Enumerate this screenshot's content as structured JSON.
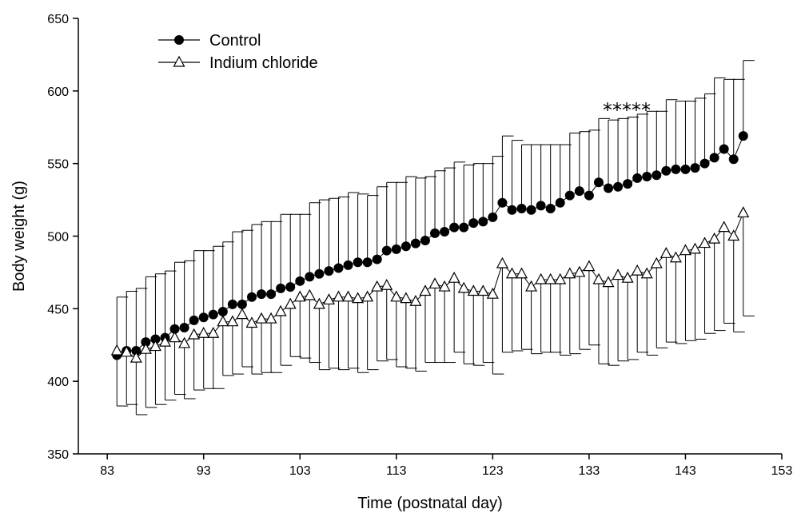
{
  "chart_data": {
    "type": "line",
    "xlabel": "Time (postnatal day)",
    "ylabel": "Body  weight (g)",
    "xlim": [
      80,
      153
    ],
    "ylim": [
      350,
      650
    ],
    "x_ticks": [
      83,
      93,
      103,
      113,
      123,
      133,
      143,
      153
    ],
    "y_ticks": [
      350,
      400,
      450,
      500,
      550,
      600,
      650
    ],
    "grid": false,
    "legend_position": "top-left",
    "significance_marker": "*****",
    "series": [
      {
        "name": "Control",
        "marker": "filled-circle",
        "error_bar_direction": "up",
        "x": [
          84,
          85,
          86,
          87,
          88,
          89,
          90,
          91,
          92,
          93,
          94,
          95,
          96,
          97,
          98,
          99,
          100,
          101,
          102,
          103,
          104,
          105,
          106,
          107,
          108,
          109,
          110,
          111,
          112,
          113,
          114,
          115,
          116,
          117,
          118,
          119,
          120,
          121,
          122,
          123,
          124,
          125,
          126,
          127,
          128,
          129,
          130,
          131,
          132,
          133,
          134,
          135,
          136,
          137,
          138,
          139,
          140,
          141,
          142,
          143,
          144,
          145,
          146,
          147,
          148,
          149
        ],
        "values": [
          418,
          421,
          421,
          427,
          429,
          430,
          436,
          437,
          442,
          444,
          446,
          448,
          453,
          453,
          458,
          460,
          460,
          464,
          465,
          469,
          472,
          474,
          476,
          478,
          480,
          482,
          482,
          484,
          490,
          491,
          493,
          495,
          497,
          502,
          503,
          506,
          506,
          509,
          510,
          513,
          523,
          518,
          519,
          518,
          521,
          519,
          523,
          528,
          531,
          528,
          537,
          533,
          534,
          536,
          540,
          541,
          542,
          545,
          546,
          546,
          547,
          550,
          554,
          560,
          553,
          569
        ],
        "error": [
          40,
          41,
          43,
          45,
          45,
          46,
          46,
          46,
          48,
          46,
          47,
          48,
          50,
          51,
          50,
          50,
          50,
          51,
          50,
          46,
          51,
          51,
          50,
          49,
          50,
          47,
          46,
          50,
          47,
          46,
          48,
          45,
          44,
          43,
          44,
          45,
          43,
          41,
          40,
          42,
          46,
          48,
          44,
          45,
          42,
          44,
          40,
          43,
          41,
          45,
          44,
          47,
          47,
          46,
          44,
          45,
          44,
          49,
          47,
          47,
          48,
          48,
          55,
          48,
          55,
          52
        ]
      },
      {
        "name": "Indium chloride",
        "marker": "open-triangle",
        "error_bar_direction": "down",
        "x": [
          84,
          85,
          86,
          87,
          88,
          89,
          90,
          91,
          92,
          93,
          94,
          95,
          96,
          97,
          98,
          99,
          100,
          101,
          102,
          103,
          104,
          105,
          106,
          107,
          108,
          109,
          110,
          111,
          112,
          113,
          114,
          115,
          116,
          117,
          118,
          119,
          120,
          121,
          122,
          123,
          124,
          125,
          126,
          127,
          128,
          129,
          130,
          131,
          132,
          133,
          134,
          135,
          136,
          137,
          138,
          139,
          140,
          141,
          142,
          143,
          144,
          145,
          146,
          147,
          148,
          149
        ],
        "values": [
          421,
          420,
          416,
          422,
          424,
          427,
          430,
          426,
          432,
          433,
          433,
          441,
          441,
          446,
          440,
          443,
          443,
          448,
          453,
          458,
          459,
          453,
          456,
          458,
          458,
          457,
          458,
          465,
          466,
          458,
          457,
          455,
          462,
          467,
          465,
          471,
          464,
          462,
          462,
          460,
          481,
          474,
          474,
          465,
          470,
          470,
          470,
          474,
          475,
          479,
          470,
          468,
          473,
          471,
          476,
          474,
          481,
          488,
          485,
          490,
          491,
          495,
          498,
          506,
          500,
          516
        ],
        "error": [
          38,
          36,
          39,
          40,
          40,
          40,
          39,
          38,
          38,
          38,
          38,
          37,
          36,
          36,
          35,
          37,
          37,
          37,
          36,
          42,
          46,
          45,
          47,
          50,
          49,
          51,
          50,
          51,
          51,
          48,
          48,
          48,
          49,
          54,
          52,
          51,
          52,
          51,
          49,
          55,
          61,
          53,
          52,
          46,
          50,
          50,
          52,
          55,
          53,
          54,
          58,
          57,
          59,
          56,
          56,
          56,
          58,
          61,
          59,
          62,
          62,
          62,
          63,
          66,
          66,
          71
        ]
      }
    ]
  }
}
